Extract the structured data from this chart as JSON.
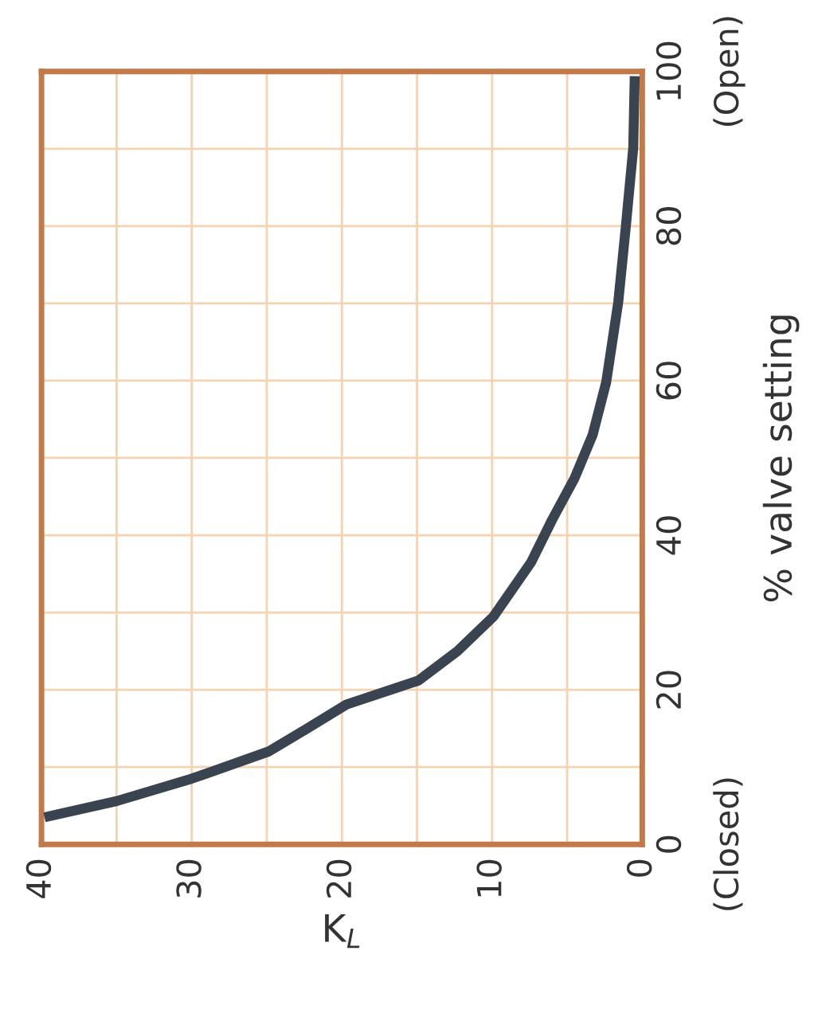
{
  "chart_data": {
    "type": "line",
    "xlabel": "K$_{L}$",
    "ylabel": "% valve setting",
    "x": [
      39.8,
      35.0,
      30.0,
      24.9,
      22.3,
      19.7,
      14.9,
      12.3,
      9.9,
      7.4,
      6.0,
      4.5,
      3.3,
      2.4,
      1.6,
      1.1,
      0.6,
      0.5
    ],
    "series": [
      {
        "color": "#3a4350",
        "values": [
          3.5,
          5.6,
          8.5,
          12.0,
          15.0,
          18.1,
          21.2,
          25.0,
          29.5,
          36.5,
          42.0,
          47.4,
          53.0,
          59.8,
          70.1,
          79.8,
          90.1,
          99.4
        ]
      }
    ],
    "xlim": [
      40,
      0
    ],
    "xticks": [
      40,
      {
        "value": 35,
        "label": null
      },
      30,
      {
        "value": 25,
        "label": null
      },
      20,
      {
        "value": 15,
        "label": null
      },
      10,
      {
        "value": 5,
        "label": null
      },
      0
    ],
    "ylim": [
      0,
      100
    ],
    "yticks": [
      0,
      {
        "value": 10,
        "label": null
      },
      20,
      {
        "value": 30,
        "label": null
      },
      40,
      {
        "value": 50,
        "label": null
      },
      60,
      {
        "value": 70,
        "label": null
      },
      80,
      {
        "value": 90,
        "label": null
      },
      100
    ],
    "annotations": [
      "(Closed)",
      "(Open)"
    ],
    "grid": true,
    "marker": "none",
    "line_style": "solid"
  }
}
